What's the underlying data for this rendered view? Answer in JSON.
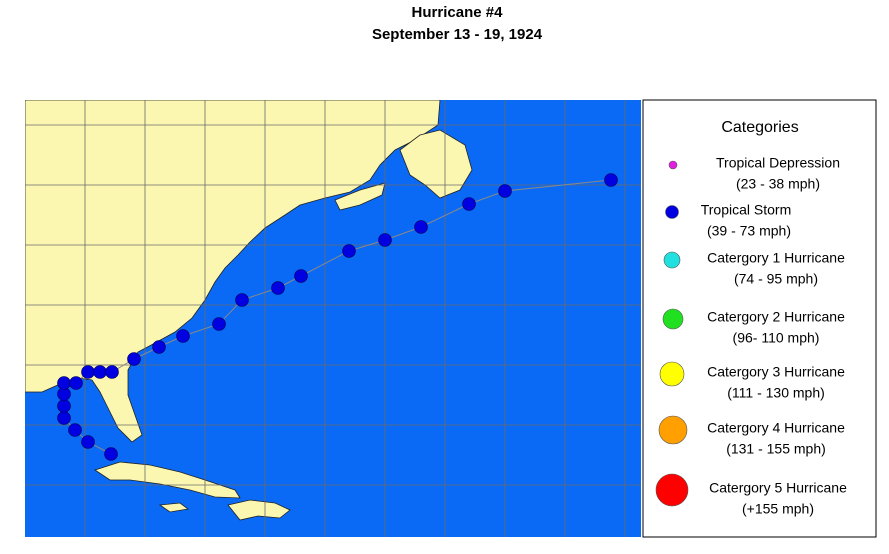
{
  "header": {
    "title": "Hurricane #4",
    "subtitle": "September 13 - 19, 1924"
  },
  "legend": {
    "title": "Categories",
    "items": [
      {
        "name": "Tropical Depression",
        "range": "(23 - 38 mph)"
      },
      {
        "name": "Tropical Storm",
        "range": "(39 - 73 mph)"
      },
      {
        "name": "Catergory 1 Hurricane",
        "range": "(74 - 95 mph)"
      },
      {
        "name": "Catergory 2 Hurricane",
        "range": "(96- 110 mph)"
      },
      {
        "name": "Catergory 3 Hurricane",
        "range": "(111 - 130 mph)"
      },
      {
        "name": "Catergory 4 Hurricane",
        "range": "(131 - 155 mph)"
      },
      {
        "name": "Catergory 5 Hurricane",
        "range": "(+155 mph)"
      }
    ]
  }
}
